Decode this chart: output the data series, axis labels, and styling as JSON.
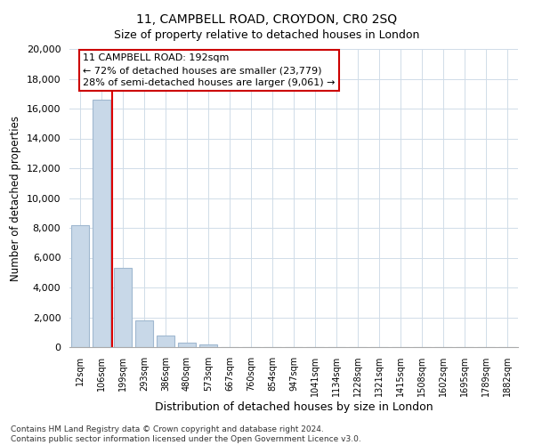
{
  "title": "11, CAMPBELL ROAD, CROYDON, CR0 2SQ",
  "subtitle": "Size of property relative to detached houses in London",
  "xlabel": "Distribution of detached houses by size in London",
  "ylabel": "Number of detached properties",
  "bar_labels": [
    "12sqm",
    "106sqm",
    "199sqm",
    "293sqm",
    "386sqm",
    "480sqm",
    "573sqm",
    "667sqm",
    "760sqm",
    "854sqm",
    "947sqm",
    "1041sqm",
    "1134sqm",
    "1228sqm",
    "1321sqm",
    "1415sqm",
    "1508sqm",
    "1602sqm",
    "1695sqm",
    "1789sqm",
    "1882sqm"
  ],
  "bar_values": [
    8200,
    16600,
    5300,
    1800,
    800,
    300,
    200,
    0,
    0,
    0,
    0,
    0,
    0,
    0,
    0,
    0,
    0,
    0,
    0,
    0,
    0
  ],
  "bar_color": "#c8d8e8",
  "bar_edge_color": "#a0b8d0",
  "highlight_bar_index": 1,
  "highlight_color": "#dd0000",
  "ylim": [
    0,
    20000
  ],
  "yticks": [
    0,
    2000,
    4000,
    6000,
    8000,
    10000,
    12000,
    14000,
    16000,
    18000,
    20000
  ],
  "annotation_title": "11 CAMPBELL ROAD: 192sqm",
  "annotation_line1": "← 72% of detached houses are smaller (23,779)",
  "annotation_line2": "28% of semi-detached houses are larger (9,061) →",
  "annotation_box_color": "#ffffff",
  "annotation_box_edge": "#cc0000",
  "footer_line1": "Contains HM Land Registry data © Crown copyright and database right 2024.",
  "footer_line2": "Contains public sector information licensed under the Open Government Licence v3.0."
}
